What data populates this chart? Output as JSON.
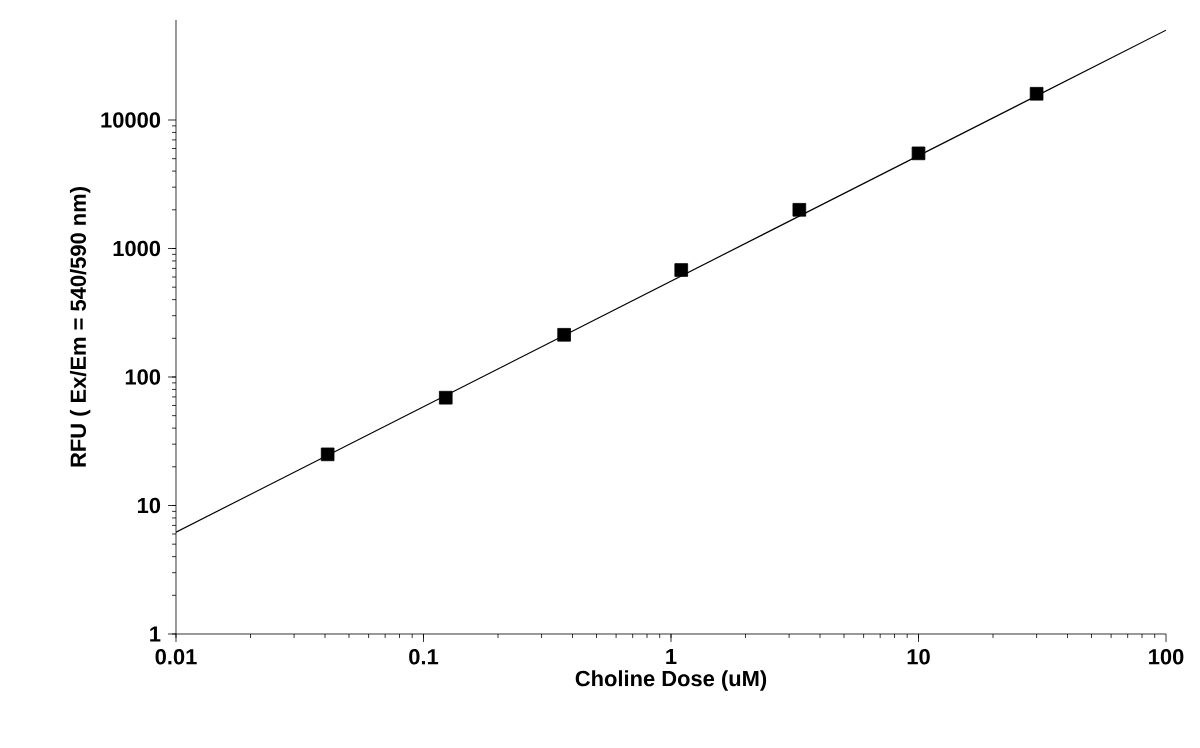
{
  "chart_data": {
    "type": "scatter",
    "xlabel": "Choline Dose (uM)",
    "ylabel": "RFU ( Ex/Em = 540/590 nm)",
    "log": "xy",
    "xlim": [
      0.01,
      100
    ],
    "ylim": [
      1,
      60000
    ],
    "xticks": [
      0.01,
      0.1,
      1,
      10,
      100
    ],
    "yticks": [
      1,
      10,
      100,
      1000,
      10000
    ],
    "grid": false,
    "series": [
      {
        "marker": "square",
        "color": "#000000",
        "x": [
          0.041,
          0.123,
          0.37,
          1.1,
          3.3,
          10,
          30
        ],
        "values": [
          25,
          69,
          213,
          680,
          2000,
          5500,
          16000
        ]
      },
      {
        "type": "line",
        "marker": "none",
        "line_style": "solid",
        "color": "#000000",
        "x": [
          0.01,
          100
        ],
        "values": [
          6.2,
          50000
        ]
      }
    ]
  }
}
